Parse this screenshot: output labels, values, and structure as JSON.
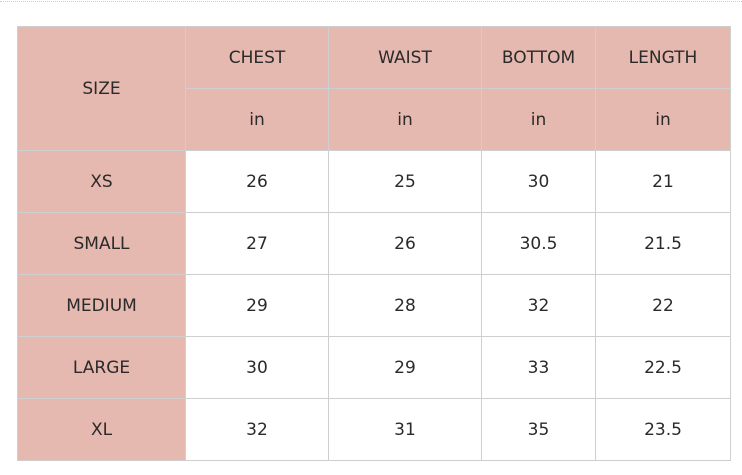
{
  "header": {
    "size_label": "SIZE",
    "columns": [
      {
        "label": "CHEST",
        "unit": "in"
      },
      {
        "label": "WAIST",
        "unit": "in"
      },
      {
        "label": "BOTTOM",
        "unit": "in"
      },
      {
        "label": "LENGTH",
        "unit": "in"
      }
    ]
  },
  "rows": [
    {
      "size": "XS",
      "values": [
        "26",
        "25",
        "30",
        "21"
      ]
    },
    {
      "size": "SMALL",
      "values": [
        "27",
        "26",
        "30.5",
        "21.5"
      ]
    },
    {
      "size": "MEDIUM",
      "values": [
        "29",
        "28",
        "32",
        "22"
      ]
    },
    {
      "size": "LARGE",
      "values": [
        "30",
        "29",
        "33",
        "22.5"
      ]
    },
    {
      "size": "XL",
      "values": [
        "32",
        "31",
        "35",
        "23.5"
      ]
    }
  ],
  "colors": {
    "header_bg": "#e5b8b0",
    "border": "#cfcfcf",
    "text": "#2a2a2a"
  }
}
